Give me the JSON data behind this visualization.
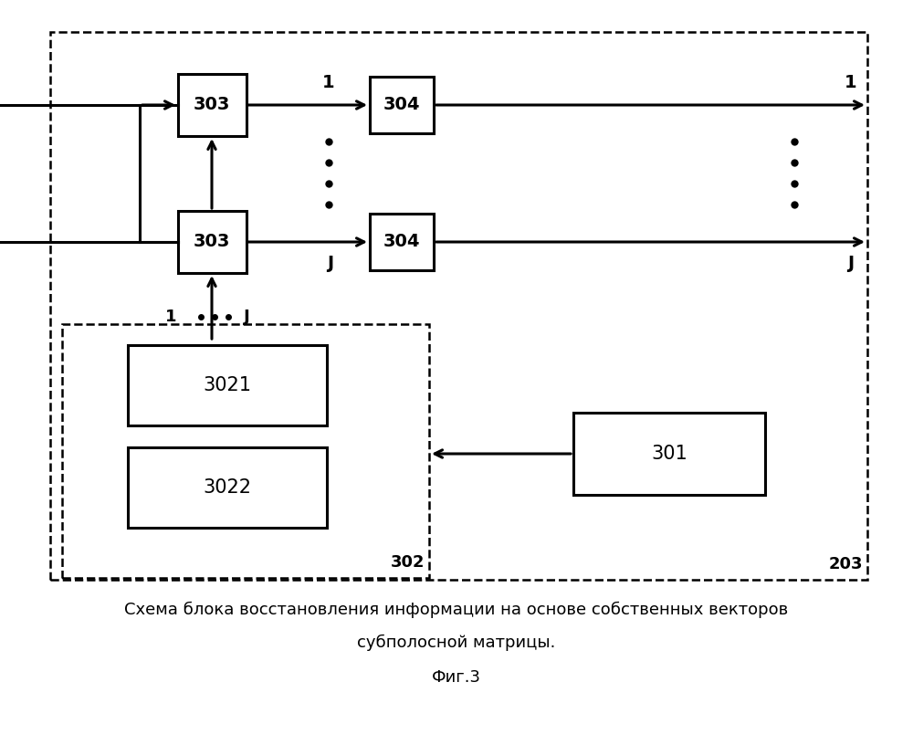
{
  "title_line1": "Схема блока восстановления информации на основе собственных векторов",
  "title_line2": "субполосной матрицы.",
  "fig_label": "Фиг.3",
  "bg_color": "#ffffff"
}
